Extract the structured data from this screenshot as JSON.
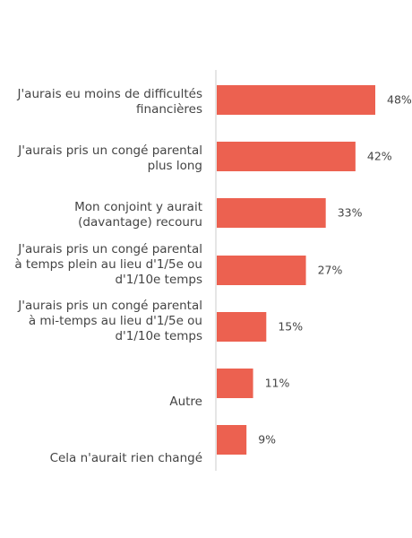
{
  "chart_data": {
    "type": "bar",
    "orientation": "horizontal",
    "categories": [
      "J'aurais eu moins de difficultés financières",
      "J'aurais pris un congé parental plus long",
      "Mon conjoint y aurait (davantage) recouru",
      "J'aurais pris un congé parental à temps plein au lieu d'1/5e ou d'1/10e temps",
      "J'aurais pris un congé parental à mi-temps au lieu d'1/5e ou d'1/10e temps",
      "Autre",
      "Cela n'aurait rien changé"
    ],
    "label_lines": [
      [
        "J'aurais eu moins de difficultés",
        "financières"
      ],
      [
        "J'aurais pris un congé parental",
        "plus long"
      ],
      [
        "Mon conjoint y aurait",
        "(davantage) recouru"
      ],
      [
        "J'aurais pris un congé parental",
        "à temps plein au lieu d'1/5e ou",
        "d'1/10e temps"
      ],
      [
        "J'aurais pris un congé parental",
        "à mi-temps au lieu d'1/5e ou",
        "d'1/10e temps"
      ],
      [
        "Autre"
      ],
      [
        "Cela n'aurait rien changé"
      ]
    ],
    "values": [
      48,
      42,
      33,
      27,
      15,
      11,
      9
    ],
    "value_labels": [
      "48%",
      "42%",
      "33%",
      "27%",
      "15%",
      "11%",
      "9%"
    ],
    "xlim": [
      0,
      48
    ],
    "bar_color": "#ec6150",
    "axis_color": "#cccccc",
    "grid": false,
    "legend": "none"
  }
}
